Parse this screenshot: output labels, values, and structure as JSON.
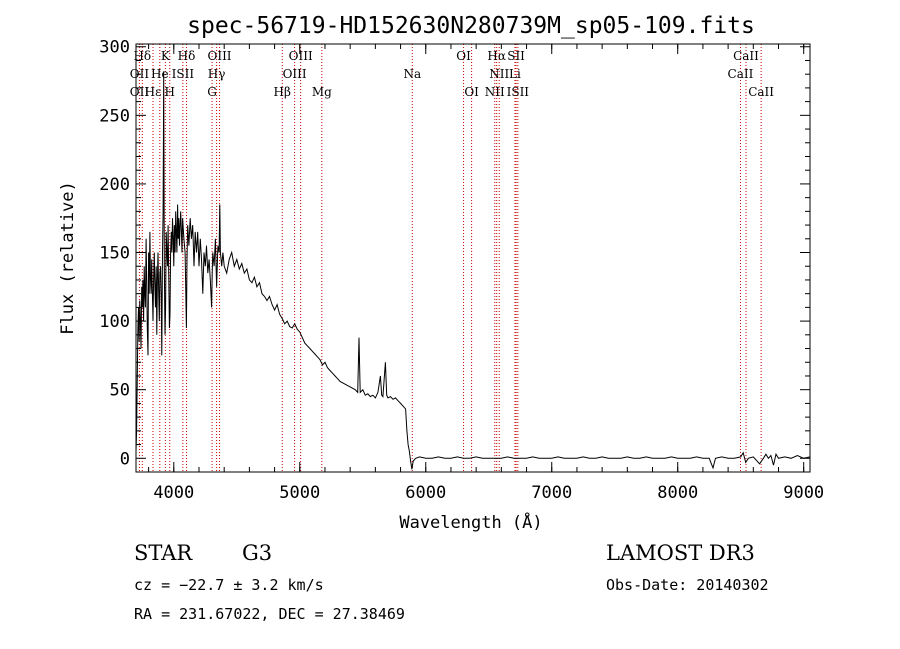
{
  "chart_data": {
    "type": "line",
    "title": "spec-56719-HD152630N280739M_sp05-109.fits",
    "xlabel": "Wavelength (Å)",
    "ylabel": "Flux (relative)",
    "xlim": [
      3700,
      9050
    ],
    "ylim": [
      -10,
      302
    ],
    "xticks": [
      {
        "value": 4000,
        "label": "4000"
      },
      {
        "value": 5000,
        "label": "5000"
      },
      {
        "value": 6000,
        "label": "6000"
      },
      {
        "value": 7000,
        "label": "7000"
      },
      {
        "value": 8000,
        "label": "8000"
      },
      {
        "value": 9000,
        "label": "9000"
      }
    ],
    "yticks": [
      {
        "value": 0,
        "label": "0"
      },
      {
        "value": 50,
        "label": "50"
      },
      {
        "value": 100,
        "label": "100"
      },
      {
        "value": 150,
        "label": "150"
      },
      {
        "value": 200,
        "label": "200"
      },
      {
        "value": 250,
        "label": "250"
      },
      {
        "value": 300,
        "label": "300"
      }
    ],
    "grid": false,
    "line_colors": {
      "spectrum": "#000000",
      "markers": "#cc0000"
    },
    "series": [
      {
        "points": [
          [
            3700,
            5
          ],
          [
            3705,
            20
          ],
          [
            3710,
            60
          ],
          [
            3715,
            95
          ],
          [
            3720,
            110
          ],
          [
            3725,
            85
          ],
          [
            3730,
            115
          ],
          [
            3735,
            100
          ],
          [
            3740,
            80
          ],
          [
            3745,
            125
          ],
          [
            3750,
            110
          ],
          [
            3755,
            130
          ],
          [
            3760,
            100
          ],
          [
            3765,
            140
          ],
          [
            3770,
            120
          ],
          [
            3775,
            110
          ],
          [
            3780,
            160
          ],
          [
            3785,
            130
          ],
          [
            3790,
            95
          ],
          [
            3795,
            75
          ],
          [
            3800,
            150
          ],
          [
            3805,
            120
          ],
          [
            3810,
            165
          ],
          [
            3815,
            130
          ],
          [
            3820,
            120
          ],
          [
            3825,
            145
          ],
          [
            3830,
            120
          ],
          [
            3835,
            100
          ],
          [
            3840,
            130
          ],
          [
            3845,
            150
          ],
          [
            3850,
            125
          ],
          [
            3855,
            110
          ],
          [
            3860,
            140
          ],
          [
            3865,
            90
          ],
          [
            3870,
            130
          ],
          [
            3875,
            150
          ],
          [
            3880,
            120
          ],
          [
            3885,
            100
          ],
          [
            3890,
            135
          ],
          [
            3895,
            140
          ],
          [
            3900,
            120
          ],
          [
            3905,
            75
          ],
          [
            3910,
            150
          ],
          [
            3915,
            180
          ],
          [
            3920,
            282
          ],
          [
            3925,
            140
          ],
          [
            3930,
            90
          ],
          [
            3935,
            110
          ],
          [
            3940,
            165
          ],
          [
            3945,
            150
          ],
          [
            3950,
            140
          ],
          [
            3955,
            170
          ],
          [
            3960,
            130
          ],
          [
            3965,
            95
          ],
          [
            3970,
            105
          ],
          [
            3975,
            150
          ],
          [
            3980,
            165
          ],
          [
            3985,
            150
          ],
          [
            3990,
            175
          ],
          [
            3995,
            160
          ],
          [
            4000,
            140
          ],
          [
            4005,
            170
          ],
          [
            4010,
            150
          ],
          [
            4015,
            180
          ],
          [
            4020,
            165
          ],
          [
            4025,
            150
          ],
          [
            4030,
            185
          ],
          [
            4035,
            160
          ],
          [
            4040,
            175
          ],
          [
            4045,
            155
          ],
          [
            4050,
            170
          ],
          [
            4055,
            180
          ],
          [
            4060,
            165
          ],
          [
            4065,
            150
          ],
          [
            4070,
            175
          ],
          [
            4080,
            160
          ],
          [
            4090,
            150
          ],
          [
            4100,
            95
          ],
          [
            4105,
            145
          ],
          [
            4110,
            170
          ],
          [
            4120,
            155
          ],
          [
            4130,
            175
          ],
          [
            4140,
            160
          ],
          [
            4150,
            170
          ],
          [
            4160,
            140
          ],
          [
            4170,
            165
          ],
          [
            4180,
            150
          ],
          [
            4190,
            165
          ],
          [
            4200,
            140
          ],
          [
            4210,
            160
          ],
          [
            4220,
            145
          ],
          [
            4230,
            120
          ],
          [
            4240,
            150
          ],
          [
            4250,
            140
          ],
          [
            4260,
            155
          ],
          [
            4270,
            135
          ],
          [
            4280,
            145
          ],
          [
            4290,
            130
          ],
          [
            4300,
            110
          ],
          [
            4305,
            135
          ],
          [
            4310,
            150
          ],
          [
            4320,
            140
          ],
          [
            4330,
            160
          ],
          [
            4340,
            125
          ],
          [
            4350,
            155
          ],
          [
            4360,
            150
          ],
          [
            4365,
            185
          ],
          [
            4370,
            150
          ],
          [
            4380,
            140
          ],
          [
            4390,
            150
          ],
          [
            4400,
            140
          ],
          [
            4420,
            135
          ],
          [
            4440,
            145
          ],
          [
            4460,
            150
          ],
          [
            4480,
            140
          ],
          [
            4500,
            145
          ],
          [
            4520,
            138
          ],
          [
            4540,
            142
          ],
          [
            4560,
            135
          ],
          [
            4580,
            138
          ],
          [
            4600,
            130
          ],
          [
            4620,
            128
          ],
          [
            4640,
            132
          ],
          [
            4660,
            125
          ],
          [
            4680,
            128
          ],
          [
            4700,
            120
          ],
          [
            4720,
            118
          ],
          [
            4740,
            115
          ],
          [
            4760,
            118
          ],
          [
            4780,
            112
          ],
          [
            4800,
            108
          ],
          [
            4820,
            112
          ],
          [
            4840,
            105
          ],
          [
            4860,
            102
          ],
          [
            4880,
            98
          ],
          [
            4900,
            100
          ],
          [
            4920,
            96
          ],
          [
            4940,
            95
          ],
          [
            4960,
            98
          ],
          [
            4980,
            94
          ],
          [
            5000,
            92
          ],
          [
            5020,
            88
          ],
          [
            5040,
            84
          ],
          [
            5060,
            82
          ],
          [
            5080,
            80
          ],
          [
            5100,
            78
          ],
          [
            5120,
            76
          ],
          [
            5140,
            74
          ],
          [
            5160,
            72
          ],
          [
            5180,
            68
          ],
          [
            5200,
            70
          ],
          [
            5220,
            66
          ],
          [
            5240,
            64
          ],
          [
            5260,
            62
          ],
          [
            5280,
            60
          ],
          [
            5300,
            58
          ],
          [
            5320,
            56
          ],
          [
            5340,
            55
          ],
          [
            5360,
            54
          ],
          [
            5380,
            53
          ],
          [
            5400,
            52
          ],
          [
            5420,
            51
          ],
          [
            5440,
            50
          ],
          [
            5460,
            48
          ],
          [
            5470,
            88
          ],
          [
            5480,
            48
          ],
          [
            5500,
            50
          ],
          [
            5520,
            46
          ],
          [
            5540,
            47
          ],
          [
            5560,
            45
          ],
          [
            5580,
            46
          ],
          [
            5600,
            44
          ],
          [
            5620,
            48
          ],
          [
            5640,
            60
          ],
          [
            5650,
            46
          ],
          [
            5660,
            45
          ],
          [
            5680,
            70
          ],
          [
            5690,
            46
          ],
          [
            5700,
            44
          ],
          [
            5720,
            45
          ],
          [
            5740,
            43
          ],
          [
            5760,
            44
          ],
          [
            5780,
            42
          ],
          [
            5800,
            40
          ],
          [
            5820,
            38
          ],
          [
            5840,
            36
          ],
          [
            5850,
            20
          ],
          [
            5860,
            10
          ],
          [
            5870,
            5
          ],
          [
            5880,
            -2
          ],
          [
            5890,
            -8
          ],
          [
            5900,
            -2
          ],
          [
            5920,
            0
          ],
          [
            5950,
            1
          ],
          [
            6000,
            0
          ],
          [
            6050,
            0
          ],
          [
            6100,
            1
          ],
          [
            6150,
            0
          ],
          [
            6200,
            0
          ],
          [
            6250,
            1
          ],
          [
            6300,
            0
          ],
          [
            6350,
            0
          ],
          [
            6400,
            1
          ],
          [
            6450,
            0
          ],
          [
            6500,
            0
          ],
          [
            6550,
            0
          ],
          [
            6600,
            0
          ],
          [
            6650,
            1
          ],
          [
            6700,
            0
          ],
          [
            6750,
            0
          ],
          [
            6800,
            0
          ],
          [
            6850,
            1
          ],
          [
            6900,
            0
          ],
          [
            6950,
            0
          ],
          [
            7000,
            0
          ],
          [
            7050,
            1
          ],
          [
            7100,
            0
          ],
          [
            7150,
            0
          ],
          [
            7200,
            0
          ],
          [
            7250,
            1
          ],
          [
            7300,
            0
          ],
          [
            7350,
            0
          ],
          [
            7400,
            1
          ],
          [
            7450,
            0
          ],
          [
            7500,
            0
          ],
          [
            7550,
            0
          ],
          [
            7600,
            1
          ],
          [
            7650,
            0
          ],
          [
            7700,
            0
          ],
          [
            7750,
            1
          ],
          [
            7800,
            0
          ],
          [
            7850,
            0
          ],
          [
            7900,
            0
          ],
          [
            7950,
            1
          ],
          [
            8000,
            0
          ],
          [
            8050,
            0
          ],
          [
            8100,
            0
          ],
          [
            8150,
            1
          ],
          [
            8200,
            0
          ],
          [
            8250,
            0
          ],
          [
            8280,
            -7
          ],
          [
            8300,
            0
          ],
          [
            8350,
            1
          ],
          [
            8400,
            0
          ],
          [
            8450,
            0
          ],
          [
            8500,
            1
          ],
          [
            8520,
            4
          ],
          [
            8540,
            -3
          ],
          [
            8560,
            0
          ],
          [
            8600,
            1
          ],
          [
            8650,
            -4
          ],
          [
            8680,
            0
          ],
          [
            8700,
            3
          ],
          [
            8720,
            0
          ],
          [
            8740,
            2
          ],
          [
            8760,
            -5
          ],
          [
            8780,
            3
          ],
          [
            8800,
            0
          ],
          [
            8850,
            1
          ],
          [
            8900,
            0
          ],
          [
            8950,
            2
          ],
          [
            9000,
            0
          ],
          [
            9050,
            1
          ]
        ]
      }
    ],
    "line_markers": [
      {
        "label": "Hδ",
        "x": 3750,
        "row": 0
      },
      {
        "label": "K",
        "x": 3933,
        "row": 0
      },
      {
        "label": "Hδ",
        "x": 4101,
        "row": 0
      },
      {
        "label": "OIII",
        "x": 4363,
        "row": 0
      },
      {
        "label": "OIII",
        "x": 5007,
        "row": 0
      },
      {
        "label": "OI",
        "x": 6300,
        "row": 0
      },
      {
        "label": "Hα",
        "x": 6563,
        "row": 0
      },
      {
        "label": "SII",
        "x": 6717,
        "row": 0
      },
      {
        "label": "CaII",
        "x": 8542,
        "row": 0
      },
      {
        "label": "OII",
        "x": 3727,
        "row": 1
      },
      {
        "label": "He",
        "x": 3889,
        "row": 1
      },
      {
        "label": "ISII",
        "x": 4072,
        "row": 1
      },
      {
        "label": "Hγ",
        "x": 4340,
        "row": 1
      },
      {
        "label": "OIII",
        "x": 4959,
        "row": 1
      },
      {
        "label": "Na",
        "x": 5893,
        "row": 1
      },
      {
        "label": "NII",
        "x": 6583,
        "row": 1
      },
      {
        "label": "Li",
        "x": 6708,
        "row": 1
      },
      {
        "label": "CaII",
        "x": 8498,
        "row": 1
      },
      {
        "label": "OII",
        "x": 3727,
        "row": 2
      },
      {
        "label": "Hε",
        "x": 3835,
        "row": 2
      },
      {
        "label": "H",
        "x": 3968,
        "row": 2
      },
      {
        "label": "G",
        "x": 4304,
        "row": 2
      },
      {
        "label": "Hβ",
        "x": 4861,
        "row": 2
      },
      {
        "label": "Mg",
        "x": 5175,
        "row": 2
      },
      {
        "label": "OI",
        "x": 6364,
        "row": 2
      },
      {
        "label": "NII",
        "x": 6548,
        "row": 2
      },
      {
        "label": "ISII",
        "x": 6731,
        "row": 2
      },
      {
        "label": "CaII",
        "x": 8662,
        "row": 2
      }
    ],
    "marker_lines": [
      3727,
      3750,
      3835,
      3889,
      3933,
      3968,
      4072,
      4101,
      4304,
      4340,
      4363,
      4861,
      4959,
      5007,
      5175,
      5893,
      6300,
      6364,
      6548,
      6563,
      6583,
      6708,
      6717,
      6731,
      8498,
      8542,
      8662
    ]
  },
  "info": {
    "object_class": "STAR",
    "subclass": "G3",
    "survey": "LAMOST DR3",
    "redshift": "cz = −22.7 ± 3.2 km/s",
    "obs_date": "Obs-Date: 20140302",
    "coords": "RA = 231.67022, DEC =  27.38469"
  }
}
